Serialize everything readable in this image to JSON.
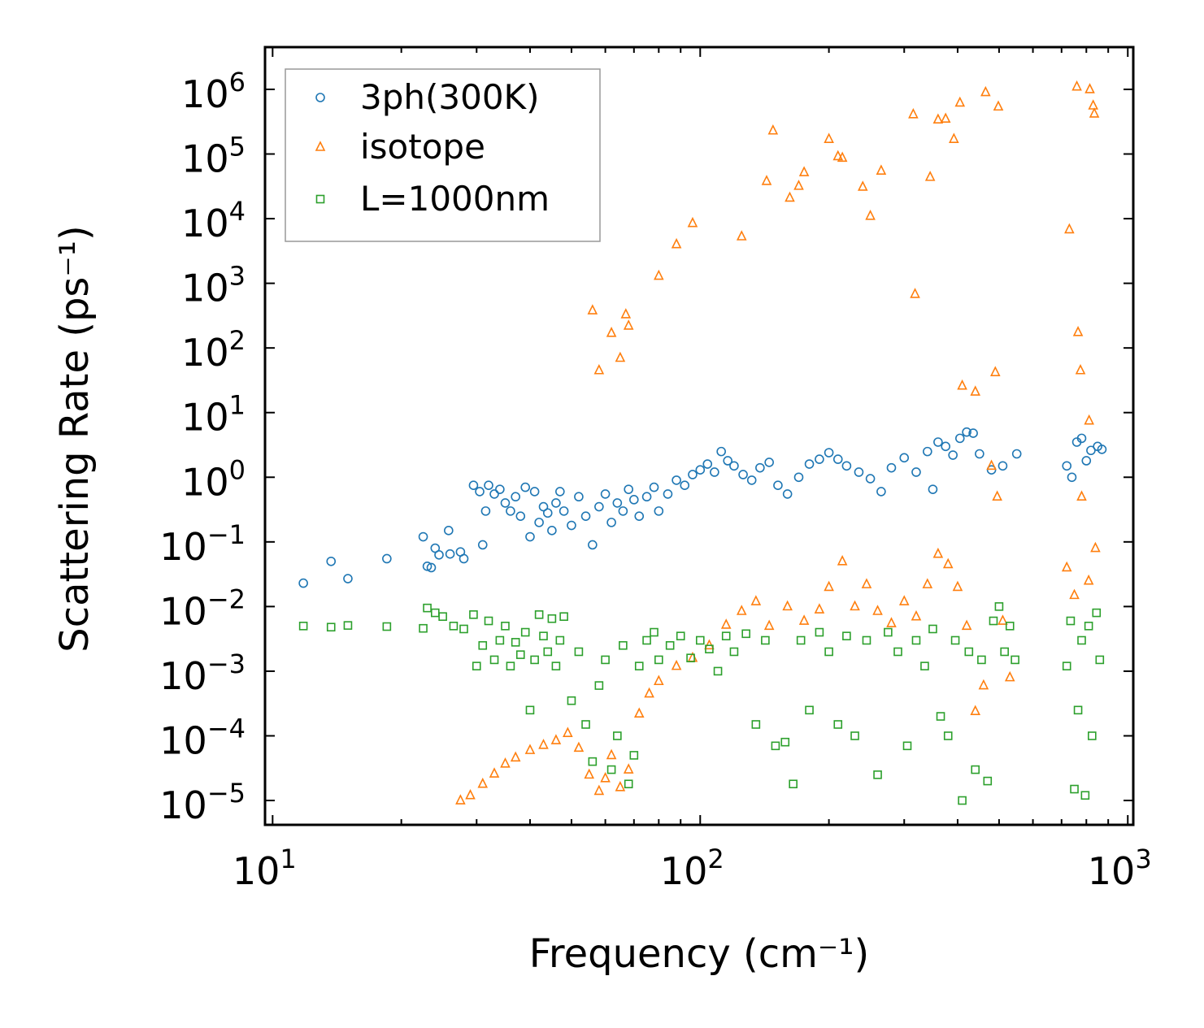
{
  "chart_data": {
    "type": "scatter",
    "title": "",
    "xlabel": "Frequency (cm⁻¹)",
    "ylabel": "Scattering Rate (ps⁻¹)",
    "xscale": "log",
    "yscale": "log",
    "xlim": [
      9.6,
      1030
    ],
    "ylim": [
      4.2e-06,
      4500000.0
    ],
    "grid": false,
    "legend_position": "top-left",
    "x_ticks": [
      {
        "base": "10",
        "exp": "1",
        "value": 10
      },
      {
        "base": "10",
        "exp": "2",
        "value": 100
      },
      {
        "base": "10",
        "exp": "3",
        "value": 1000
      }
    ],
    "y_ticks": [
      {
        "base": "10",
        "exp": "6",
        "value": 1000000.0
      },
      {
        "base": "10",
        "exp": "5",
        "value": 100000.0
      },
      {
        "base": "10",
        "exp": "4",
        "value": 10000.0
      },
      {
        "base": "10",
        "exp": "3",
        "value": 1000.0
      },
      {
        "base": "10",
        "exp": "2",
        "value": 100.0
      },
      {
        "base": "10",
        "exp": "1",
        "value": 10.0
      },
      {
        "base": "10",
        "exp": "0",
        "value": 1
      },
      {
        "base": "10",
        "exp": "−1",
        "value": 0.1
      },
      {
        "base": "10",
        "exp": "−2",
        "value": 0.01
      },
      {
        "base": "10",
        "exp": "−3",
        "value": 0.001
      },
      {
        "base": "10",
        "exp": "−4",
        "value": 0.0001
      },
      {
        "base": "10",
        "exp": "−5",
        "value": 1e-05
      }
    ],
    "series": [
      {
        "name": "3ph(300K)",
        "marker": "circle",
        "color": "#1f77b4",
        "points": [
          [
            11.8,
            0.023
          ],
          [
            13.7,
            0.05
          ],
          [
            15,
            0.027
          ],
          [
            18.5,
            0.055
          ],
          [
            22.5,
            0.12
          ],
          [
            23,
            0.042
          ],
          [
            23.5,
            0.04
          ],
          [
            24,
            0.08
          ],
          [
            24.5,
            0.063
          ],
          [
            25.8,
            0.15
          ],
          [
            26,
            0.065
          ],
          [
            27.5,
            0.07
          ],
          [
            28,
            0.055
          ],
          [
            29.5,
            0.75
          ],
          [
            30.5,
            0.6
          ],
          [
            31,
            0.09
          ],
          [
            31.5,
            0.3
          ],
          [
            32,
            0.75
          ],
          [
            33,
            0.55
          ],
          [
            34,
            0.65
          ],
          [
            35,
            0.4
          ],
          [
            36,
            0.3
          ],
          [
            37,
            0.5
          ],
          [
            38,
            0.25
          ],
          [
            39,
            0.7
          ],
          [
            40,
            0.12
          ],
          [
            41,
            0.6
          ],
          [
            42,
            0.2
          ],
          [
            43,
            0.35
          ],
          [
            44,
            0.28
          ],
          [
            45,
            0.15
          ],
          [
            46,
            0.4
          ],
          [
            47,
            0.6
          ],
          [
            48,
            0.3
          ],
          [
            50,
            0.18
          ],
          [
            52,
            0.5
          ],
          [
            54,
            0.25
          ],
          [
            56,
            0.09
          ],
          [
            58,
            0.35
          ],
          [
            60,
            0.55
          ],
          [
            62,
            0.2
          ],
          [
            64,
            0.4
          ],
          [
            66,
            0.3
          ],
          [
            68,
            0.65
          ],
          [
            70,
            0.45
          ],
          [
            72,
            0.25
          ],
          [
            75,
            0.5
          ],
          [
            78,
            0.7
          ],
          [
            80,
            0.3
          ],
          [
            84,
            0.55
          ],
          [
            88,
            0.9
          ],
          [
            92,
            0.75
          ],
          [
            96,
            1.1
          ],
          [
            100,
            1.3
          ],
          [
            104,
            1.6
          ],
          [
            108,
            1.2
          ],
          [
            112,
            2.5
          ],
          [
            116,
            1.8
          ],
          [
            120,
            1.5
          ],
          [
            126,
            1.1
          ],
          [
            132,
            0.9
          ],
          [
            138,
            1.4
          ],
          [
            145,
            1.7
          ],
          [
            152,
            0.75
          ],
          [
            160,
            0.55
          ],
          [
            170,
            1.0
          ],
          [
            180,
            1.6
          ],
          [
            190,
            1.9
          ],
          [
            200,
            2.4
          ],
          [
            210,
            1.9
          ],
          [
            220,
            1.5
          ],
          [
            235,
            1.2
          ],
          [
            250,
            0.95
          ],
          [
            265,
            0.6
          ],
          [
            280,
            1.4
          ],
          [
            300,
            2.0
          ],
          [
            320,
            1.2
          ],
          [
            340,
            2.5
          ],
          [
            350,
            0.65
          ],
          [
            360,
            3.5
          ],
          [
            375,
            3.0
          ],
          [
            390,
            2.2
          ],
          [
            405,
            4.0
          ],
          [
            420,
            5.0
          ],
          [
            435,
            4.8
          ],
          [
            450,
            2.3
          ],
          [
            480,
            1.3
          ],
          [
            510,
            1.5
          ],
          [
            550,
            2.3
          ],
          [
            720,
            1.5
          ],
          [
            740,
            1.0
          ],
          [
            760,
            3.5
          ],
          [
            780,
            4.0
          ],
          [
            800,
            1.8
          ],
          [
            820,
            2.6
          ],
          [
            850,
            3.0
          ],
          [
            870,
            2.7
          ]
        ]
      },
      {
        "name": "isotope",
        "marker": "triangle",
        "color": "#ff7f0e",
        "points": [
          [
            27.5,
            1e-05
          ],
          [
            29,
            1.2e-05
          ],
          [
            31,
            1.8e-05
          ],
          [
            33,
            2.6e-05
          ],
          [
            35,
            3.7e-05
          ],
          [
            37,
            4.6e-05
          ],
          [
            40,
            6e-05
          ],
          [
            43,
            7.2e-05
          ],
          [
            46,
            8.5e-05
          ],
          [
            49,
            0.00011
          ],
          [
            52,
            6.5e-05
          ],
          [
            55,
            2.5e-05
          ],
          [
            58,
            1.4e-05
          ],
          [
            60,
            2.2e-05
          ],
          [
            62,
            5e-05
          ],
          [
            65,
            1.6e-05
          ],
          [
            68,
            3e-05
          ],
          [
            72,
            0.00022
          ],
          [
            76,
            0.00045
          ],
          [
            80,
            0.0007
          ],
          [
            88,
            0.0012
          ],
          [
            96,
            0.0016
          ],
          [
            105,
            0.0025
          ],
          [
            115,
            0.0052
          ],
          [
            125,
            0.0085
          ],
          [
            135,
            0.012
          ],
          [
            145,
            0.005
          ],
          [
            160,
            0.01
          ],
          [
            175,
            0.006
          ],
          [
            190,
            0.009
          ],
          [
            200,
            0.02
          ],
          [
            215,
            0.05
          ],
          [
            230,
            0.01
          ],
          [
            245,
            0.022
          ],
          [
            260,
            0.0085
          ],
          [
            280,
            0.0055
          ],
          [
            300,
            0.012
          ],
          [
            320,
            0.007
          ],
          [
            340,
            0.022
          ],
          [
            360,
            0.065
          ],
          [
            380,
            0.045
          ],
          [
            400,
            0.02
          ],
          [
            420,
            0.005
          ],
          [
            440,
            0.00024
          ],
          [
            460,
            0.0006
          ],
          [
            480,
            1.5
          ],
          [
            495,
            0.5
          ],
          [
            510,
            0.006
          ],
          [
            530,
            0.0008
          ],
          [
            720,
            0.04
          ],
          [
            750,
            0.015
          ],
          [
            780,
            0.5
          ],
          [
            810,
            0.025
          ],
          [
            840,
            0.08
          ],
          [
            56,
            380
          ],
          [
            58,
            45
          ],
          [
            62,
            170
          ],
          [
            65,
            70
          ],
          [
            67,
            330
          ],
          [
            68,
            220
          ],
          [
            80,
            1300
          ],
          [
            88,
            4000
          ],
          [
            96,
            8500
          ],
          [
            125,
            5300
          ],
          [
            143,
            38000
          ],
          [
            148,
            230000
          ],
          [
            162,
            21000
          ],
          [
            170,
            32000
          ],
          [
            175,
            52000
          ],
          [
            200,
            170000
          ],
          [
            210,
            92000
          ],
          [
            215,
            87000
          ],
          [
            240,
            31000
          ],
          [
            250,
            11000
          ],
          [
            265,
            55000
          ],
          [
            315,
            410000
          ],
          [
            318,
            680
          ],
          [
            345,
            44000
          ],
          [
            360,
            340000
          ],
          [
            375,
            350000
          ],
          [
            392,
            170000
          ],
          [
            405,
            620000
          ],
          [
            410,
            26
          ],
          [
            440,
            21
          ],
          [
            465,
            900000
          ],
          [
            490,
            42
          ],
          [
            498,
            540000
          ],
          [
            730,
            6800
          ],
          [
            760,
            1100000
          ],
          [
            765,
            175
          ],
          [
            775,
            45
          ],
          [
            815,
            1000000
          ],
          [
            830,
            560000
          ],
          [
            835,
            420000
          ],
          [
            812,
            7.5
          ]
        ]
      },
      {
        "name": "L=1000nm",
        "marker": "square",
        "color": "#2ca02c",
        "points": [
          [
            11.8,
            0.005
          ],
          [
            13.7,
            0.0048
          ],
          [
            15,
            0.0051
          ],
          [
            18.5,
            0.0049
          ],
          [
            22.5,
            0.0046
          ],
          [
            23,
            0.0095
          ],
          [
            24,
            0.008
          ],
          [
            25,
            0.007
          ],
          [
            26.5,
            0.005
          ],
          [
            28,
            0.0045
          ],
          [
            29.5,
            0.0075
          ],
          [
            30,
            0.0012
          ],
          [
            31,
            0.0025
          ],
          [
            32,
            0.006
          ],
          [
            33,
            0.0015
          ],
          [
            34,
            0.003
          ],
          [
            35,
            0.005
          ],
          [
            36,
            0.0012
          ],
          [
            37,
            0.0028
          ],
          [
            38,
            0.0018
          ],
          [
            39,
            0.004
          ],
          [
            40,
            0.00025
          ],
          [
            41,
            0.0015
          ],
          [
            42,
            0.0075
          ],
          [
            43,
            0.0035
          ],
          [
            44,
            0.002
          ],
          [
            45,
            0.0065
          ],
          [
            46,
            0.0012
          ],
          [
            47,
            0.003
          ],
          [
            48,
            0.007
          ],
          [
            50,
            0.00035
          ],
          [
            52,
            0.002
          ],
          [
            54,
            0.00015
          ],
          [
            56,
            4e-05
          ],
          [
            58,
            0.0006
          ],
          [
            60,
            0.0015
          ],
          [
            62,
            3e-05
          ],
          [
            64,
            0.0001
          ],
          [
            66,
            0.0025
          ],
          [
            68,
            1.8e-05
          ],
          [
            70,
            5e-05
          ],
          [
            72,
            0.0012
          ],
          [
            75,
            0.003
          ],
          [
            78,
            0.004
          ],
          [
            80,
            0.0015
          ],
          [
            85,
            0.0025
          ],
          [
            90,
            0.0035
          ],
          [
            95,
            0.0016
          ],
          [
            100,
            0.003
          ],
          [
            105,
            0.0022
          ],
          [
            110,
            0.001
          ],
          [
            115,
            0.0035
          ],
          [
            120,
            0.002
          ],
          [
            128,
            0.0038
          ],
          [
            135,
            0.00015
          ],
          [
            142,
            0.003
          ],
          [
            150,
            7e-05
          ],
          [
            158,
            8e-05
          ],
          [
            165,
            1.8e-05
          ],
          [
            172,
            0.003
          ],
          [
            180,
            0.00025
          ],
          [
            190,
            0.004
          ],
          [
            200,
            0.002
          ],
          [
            210,
            0.00015
          ],
          [
            220,
            0.0035
          ],
          [
            230,
            0.0001
          ],
          [
            245,
            0.003
          ],
          [
            260,
            2.5e-05
          ],
          [
            275,
            0.004
          ],
          [
            290,
            0.002
          ],
          [
            305,
            7e-05
          ],
          [
            320,
            0.003
          ],
          [
            335,
            0.0012
          ],
          [
            350,
            0.0045
          ],
          [
            365,
            0.0002
          ],
          [
            380,
            0.0001
          ],
          [
            395,
            0.003
          ],
          [
            410,
            1e-05
          ],
          [
            425,
            0.002
          ],
          [
            440,
            3e-05
          ],
          [
            455,
            0.0015
          ],
          [
            470,
            2e-05
          ],
          [
            485,
            0.006
          ],
          [
            500,
            0.01
          ],
          [
            515,
            0.002
          ],
          [
            530,
            0.005
          ],
          [
            545,
            0.0015
          ],
          [
            720,
            0.0012
          ],
          [
            735,
            0.006
          ],
          [
            750,
            1.5e-05
          ],
          [
            765,
            0.00025
          ],
          [
            780,
            0.003
          ],
          [
            795,
            1.2e-05
          ],
          [
            810,
            0.005
          ],
          [
            825,
            0.0001
          ],
          [
            845,
            0.008
          ],
          [
            860,
            0.0015
          ]
        ]
      }
    ]
  }
}
